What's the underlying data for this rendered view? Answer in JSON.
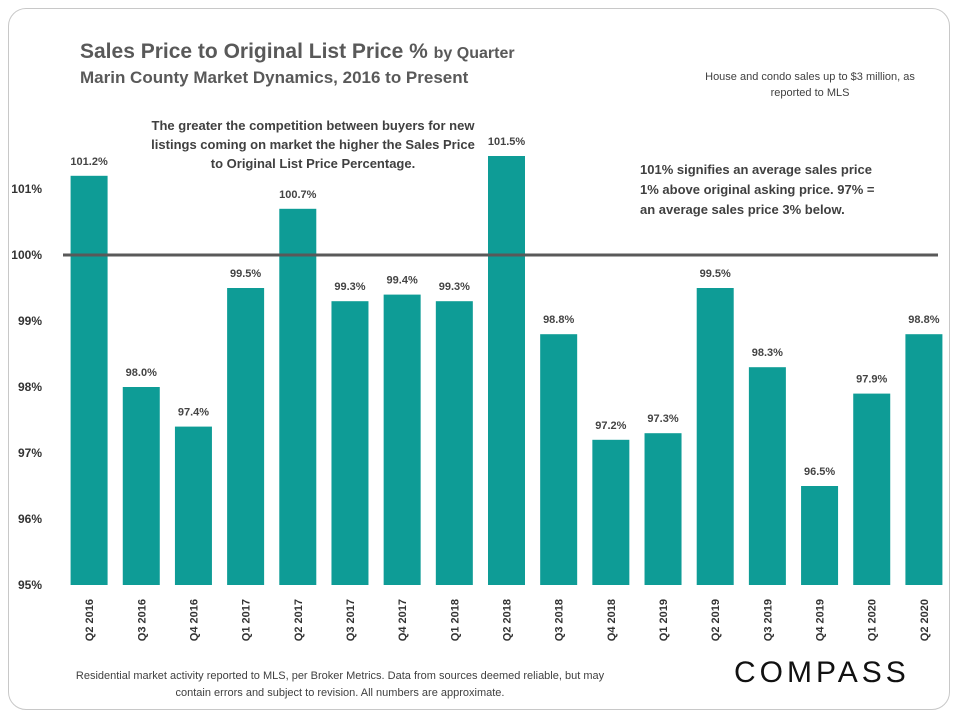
{
  "title_main": "Sales Price to Original List Price %",
  "title_suffix": "by Quarter",
  "subtitle": "Marin County Market Dynamics,  2016 to Present",
  "note_top": "House and condo sales up to $3 million, as reported to MLS",
  "annotation_left": "The greater the competition between buyers for new listings coming on market the higher the Sales Price to Original List Price Percentage.",
  "annotation_right": "101% signifies an average sales price 1% above original asking price. 97% = an average sales price 3% below.",
  "footer_note": "Residential market activity reported to MLS, per Broker Metrics. Data from sources deemed reliable, but may contain errors and subject to revision. All numbers are approximate.",
  "logo": "COMPASS",
  "colors": {
    "bar": "#0e9c96",
    "reference_line": "#595959"
  },
  "chart_data": {
    "type": "bar",
    "title": "Sales Price to Original List Price % by Quarter",
    "categories": [
      "Q2 2016",
      "Q3 2016",
      "Q4 2016",
      "Q1 2017",
      "Q2 2017",
      "Q3 2017",
      "Q4 2017",
      "Q1 2018",
      "Q2 2018",
      "Q3 2018",
      "Q4 2018",
      "Q1 2019",
      "Q2 2019",
      "Q3 2019",
      "Q4 2019",
      "Q1 2020",
      "Q2 2020"
    ],
    "values": [
      101.2,
      98.0,
      97.4,
      99.5,
      100.7,
      99.3,
      99.4,
      99.3,
      101.5,
      98.8,
      97.2,
      97.3,
      99.5,
      98.3,
      96.5,
      97.9,
      98.8
    ],
    "data_labels": [
      "101.2%",
      "98.0%",
      "97.4%",
      "99.5%",
      "100.7%",
      "99.3%",
      "99.4%",
      "99.3%",
      "101.5%",
      "98.8%",
      "97.2%",
      "97.3%",
      "99.5%",
      "98.3%",
      "96.5%",
      "97.9%",
      "98.8%"
    ],
    "ylim": [
      95,
      102
    ],
    "yticks": [
      95,
      96,
      97,
      98,
      99,
      100,
      101
    ],
    "ytick_labels": [
      "95%",
      "96%",
      "97%",
      "98%",
      "99%",
      "100%",
      "101%"
    ],
    "reference_line": 100,
    "xlabel": "",
    "ylabel": ""
  }
}
